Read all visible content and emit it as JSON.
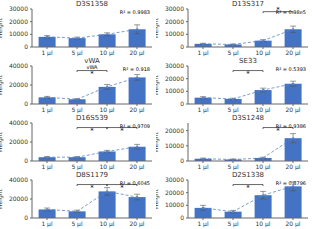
{
  "chart_data": [
    {
      "type": "bar",
      "title": "D3S1358",
      "annotation": "R² = 0.9983",
      "ylabel": "Height",
      "categories": [
        "1 µl",
        "5 µl",
        "10 µl",
        "20 µl"
      ],
      "series": [
        {
          "type": "bar",
          "color": "#4472C4",
          "values": [
            8000,
            7000,
            10000,
            14000
          ],
          "errors": [
            1000,
            800,
            1200,
            3500
          ]
        },
        {
          "type": "line",
          "color": "#5585C8",
          "line_style": "dashed",
          "marker": "circle",
          "values": [
            8000,
            7000,
            10000,
            14000
          ]
        }
      ],
      "ylim": [
        0,
        30000
      ],
      "yticks": [
        0,
        10000,
        20000,
        30000
      ],
      "brackets": [],
      "top_bracket": null
    },
    {
      "type": "bar",
      "title": "D13S317",
      "annotation": "R² = 0.98e5",
      "ylabel": "Height",
      "categories": [
        "1 µl",
        "5 µl",
        "10 µl",
        "20 µl"
      ],
      "series": [
        {
          "type": "bar",
          "color": "#4472C4",
          "values": [
            2500,
            2000,
            5000,
            14000
          ],
          "errors": [
            400,
            300,
            800,
            2500
          ]
        },
        {
          "type": "line",
          "color": "#5585C8",
          "line_style": "dashed",
          "marker": "circle",
          "values": [
            2500,
            2000,
            5000,
            14000
          ]
        }
      ],
      "ylim": [
        0,
        30000
      ],
      "yticks": [
        0,
        10000,
        20000,
        30000
      ],
      "brackets": [],
      "top_bracket": {
        "from": "10 µl",
        "to": "20 µl",
        "text": "*"
      }
    },
    {
      "type": "bar",
      "title": "vWA",
      "annotation": "R² = 0.918",
      "ylabel": "Height",
      "categories": [
        "1 µl",
        "5 µl",
        "10 µl",
        "20 µl"
      ],
      "series": [
        {
          "type": "bar",
          "color": "#4472C4",
          "values": [
            7000,
            5000,
            18000,
            28000
          ],
          "errors": [
            1000,
            600,
            2500,
            3000
          ]
        },
        {
          "type": "line",
          "color": "#5585C8",
          "line_style": "dashed",
          "marker": "circle",
          "values": [
            7000,
            5000,
            18000,
            28000
          ]
        }
      ],
      "ylim": [
        0,
        40000
      ],
      "yticks": [
        0,
        20000,
        40000
      ],
      "brackets": [
        {
          "from": "5 µl",
          "to": "10 µl",
          "label": "vWA",
          "text": "*"
        }
      ],
      "top_bracket": null
    },
    {
      "type": "bar",
      "title": "SE33",
      "annotation": "R² = 0.5393",
      "ylabel": "Height",
      "categories": [
        "1 µl",
        "5 µl",
        "10 µl",
        "20 µl"
      ],
      "series": [
        {
          "type": "bar",
          "color": "#4472C4",
          "values": [
            5000,
            4000,
            11000,
            16000
          ],
          "errors": [
            800,
            600,
            1500,
            2000
          ]
        },
        {
          "type": "line",
          "color": "#5585C8",
          "line_style": "dashed",
          "marker": "circle",
          "values": [
            5000,
            4000,
            11000,
            16000
          ]
        }
      ],
      "ylim": [
        0,
        30000
      ],
      "yticks": [
        0,
        10000,
        20000,
        30000
      ],
      "brackets": [
        {
          "from": "5 µl",
          "to": "10 µl",
          "text": "*"
        }
      ],
      "top_bracket": null
    },
    {
      "type": "bar",
      "title": "D16S539",
      "annotation": "R² = 0.9709",
      "ylabel": "Height",
      "categories": [
        "1 µl",
        "5 µl",
        "10 µl",
        "20 µl"
      ],
      "series": [
        {
          "type": "bar",
          "color": "#4472C4",
          "values": [
            4000,
            4000,
            10000,
            15000
          ],
          "errors": [
            700,
            600,
            1200,
            2500
          ]
        },
        {
          "type": "line",
          "color": "#5585C8",
          "line_style": "dashed",
          "marker": "circle",
          "values": [
            4000,
            4000,
            10000,
            15000
          ]
        }
      ],
      "ylim": [
        0,
        40000
      ],
      "yticks": [
        0,
        20000,
        40000
      ],
      "brackets": [
        {
          "from": "5 µl",
          "to": "10 µl",
          "text": "*"
        },
        {
          "from": "10 µl",
          "to": "20 µl",
          "text": "*"
        }
      ],
      "top_bracket": null
    },
    {
      "type": "bar",
      "title": "D3S1248",
      "annotation": "R² = 0.9386",
      "ylabel": "Height",
      "categories": [
        "1 µl",
        "5 µl",
        "10 µl",
        "20 µl"
      ],
      "series": [
        {
          "type": "bar",
          "color": "#4472C4",
          "values": [
            1500,
            1000,
            2000,
            15000
          ],
          "errors": [
            400,
            300,
            500,
            3000
          ]
        },
        {
          "type": "line",
          "color": "#5585C8",
          "line_style": "dashed",
          "marker": "circle",
          "values": [
            1500,
            1000,
            2000,
            15000
          ]
        }
      ],
      "ylim": [
        0,
        25000
      ],
      "yticks": [
        0,
        10000,
        20000
      ],
      "brackets": [
        {
          "from": "10 µl",
          "to": "20 µl",
          "text": "*"
        }
      ],
      "top_bracket": null
    },
    {
      "type": "bar",
      "title": "D8S1179",
      "annotation": "R² = 0.6045",
      "ylabel": "Height",
      "categories": [
        "1 µl",
        "5 µl",
        "10 µl",
        "20 µl"
      ],
      "series": [
        {
          "type": "bar",
          "color": "#4472C4",
          "values": [
            9000,
            7000,
            28000,
            22000
          ],
          "errors": [
            1500,
            1200,
            4000,
            3000
          ]
        },
        {
          "type": "line",
          "color": "#5585C8",
          "line_style": "dashed",
          "marker": "circle",
          "values": [
            9000,
            7000,
            28000,
            22000
          ]
        }
      ],
      "ylim": [
        0,
        40000
      ],
      "yticks": [
        0,
        20000,
        40000
      ],
      "brackets": [
        {
          "from": "5 µl",
          "to": "10 µl",
          "text": "*"
        },
        {
          "from": "10 µl",
          "to": "20 µl",
          "text": "*"
        }
      ],
      "top_bracket": null
    },
    {
      "type": "bar",
      "title": "D2S1338",
      "annotation": "R² = 0.8796",
      "ylabel": "Height",
      "categories": [
        "1 µl",
        "5 µl",
        "10 µl",
        "20 µl"
      ],
      "series": [
        {
          "type": "bar",
          "color": "#4472C4",
          "values": [
            8000,
            5000,
            18000,
            25000
          ],
          "errors": [
            2000,
            1000,
            3000,
            3500
          ]
        },
        {
          "type": "line",
          "color": "#5585C8",
          "line_style": "dashed",
          "marker": "circle",
          "values": [
            8000,
            5000,
            18000,
            25000
          ]
        }
      ],
      "ylim": [
        0,
        30000
      ],
      "yticks": [
        0,
        10000,
        20000,
        30000
      ],
      "brackets": [
        {
          "from": "5 µl",
          "to": "10 µl",
          "text": "*"
        }
      ],
      "top_bracket": null
    }
  ]
}
